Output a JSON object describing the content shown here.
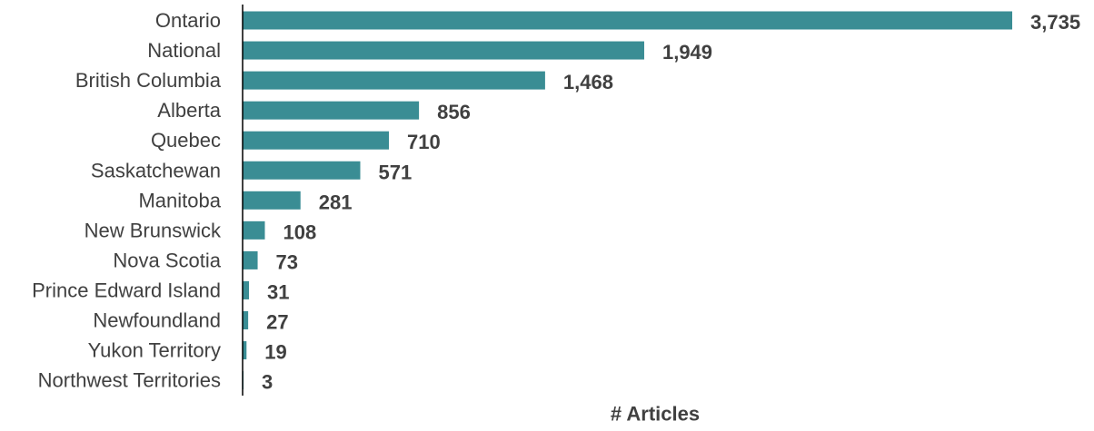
{
  "chart_data": {
    "type": "bar",
    "orientation": "horizontal",
    "categories": [
      "Ontario",
      "National",
      "British Columbia",
      "Alberta",
      "Quebec",
      "Saskatchewan",
      "Manitoba",
      "New Brunswick",
      "Nova Scotia",
      "Prince Edward Island",
      "Newfoundland",
      "Yukon Territory",
      "Northwest Territories"
    ],
    "values": [
      3735,
      1949,
      1468,
      856,
      710,
      571,
      281,
      108,
      73,
      31,
      27,
      19,
      3
    ],
    "value_labels": [
      "3,735",
      "1,949",
      "1,468",
      "856",
      "710",
      "571",
      "281",
      "108",
      "73",
      "31",
      "27",
      "19",
      "3"
    ],
    "title": "",
    "xlabel": "# Articles",
    "ylabel": "",
    "xlim": [
      0,
      3735
    ],
    "grid": false,
    "legend": "none",
    "bar_color": "#3a8d94",
    "text_color": "#404040",
    "axis_color": "#000000"
  }
}
